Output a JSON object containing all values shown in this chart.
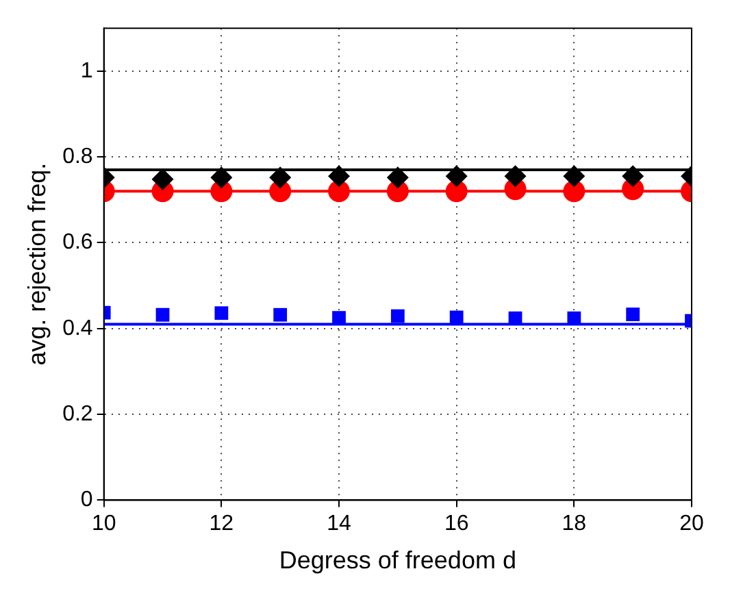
{
  "chart_data": {
    "type": "scatter",
    "xlabel": "Degress of freedom d",
    "ylabel": "avg. rejection freq.",
    "x": [
      10,
      11,
      12,
      13,
      14,
      15,
      16,
      17,
      18,
      19,
      20
    ],
    "series": [
      {
        "color": "#000000",
        "marker": "diamond",
        "values": [
          0.752,
          0.748,
          0.752,
          0.752,
          0.755,
          0.752,
          0.755,
          0.755,
          0.755,
          0.755,
          0.755
        ]
      },
      {
        "color": "#ff0000",
        "marker": "circle",
        "values": [
          0.72,
          0.72,
          0.72,
          0.72,
          0.72,
          0.72,
          0.72,
          0.725,
          0.72,
          0.725,
          0.72
        ]
      },
      {
        "color": "#0000ff",
        "marker": "square",
        "values": [
          0.437,
          0.432,
          0.436,
          0.432,
          0.425,
          0.429,
          0.426,
          0.424,
          0.424,
          0.433,
          0.418
        ]
      }
    ],
    "ref_lines": [
      {
        "axis": "y",
        "value": 0.77,
        "color": "#000000"
      },
      {
        "axis": "y",
        "value": 0.72,
        "color": "#ff0000"
      },
      {
        "axis": "y",
        "value": 0.41,
        "color": "#0000ff"
      }
    ],
    "xlim": [
      10,
      20
    ],
    "xticks": [
      10,
      12,
      14,
      16,
      18,
      20
    ],
    "ylim": [
      0,
      1.1
    ],
    "yticks": [
      0,
      0.2,
      0.4,
      0.6,
      0.8,
      1
    ],
    "grid": true
  }
}
